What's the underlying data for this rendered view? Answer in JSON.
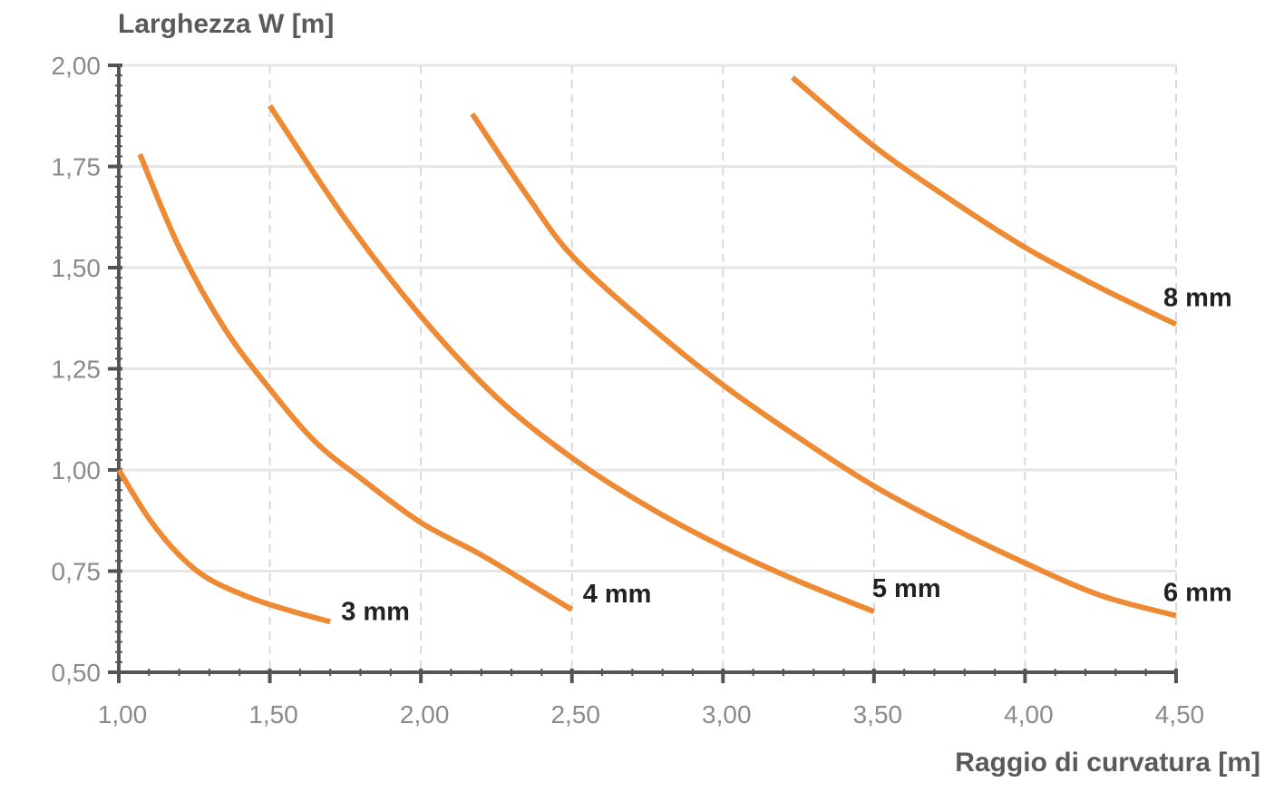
{
  "chart_data": {
    "type": "line",
    "title": "",
    "ylabel": "Larghezza W [m]",
    "xlabel": "Raggio di curvatura [m]",
    "xlim": [
      1.0,
      4.5
    ],
    "ylim": [
      0.5,
      2.0
    ],
    "x_ticks": [
      "1,00",
      "1,50",
      "2,00",
      "2,50",
      "3,00",
      "3,50",
      "4,00",
      "4,50"
    ],
    "y_ticks": [
      "0,50",
      "0,75",
      "1,00",
      "1,25",
      "1,50",
      "1,75",
      "2,00"
    ],
    "x_tick_values": [
      1.0,
      1.5,
      2.0,
      2.5,
      3.0,
      3.5,
      4.0,
      4.5
    ],
    "y_tick_values": [
      0.5,
      0.75,
      1.0,
      1.25,
      1.5,
      1.75,
      2.0
    ],
    "grid": true,
    "line_color": "#ED8A33",
    "series": [
      {
        "name": "3 mm",
        "points": [
          [
            1.0,
            1.0
          ],
          [
            1.1,
            0.88
          ],
          [
            1.2,
            0.79
          ],
          [
            1.3,
            0.73
          ],
          [
            1.45,
            0.68
          ],
          [
            1.6,
            0.645
          ],
          [
            1.7,
            0.625
          ]
        ]
      },
      {
        "name": "4 mm",
        "points": [
          [
            1.07,
            1.78
          ],
          [
            1.2,
            1.55
          ],
          [
            1.35,
            1.35
          ],
          [
            1.5,
            1.2
          ],
          [
            1.65,
            1.07
          ],
          [
            1.8,
            0.98
          ],
          [
            2.0,
            0.87
          ],
          [
            2.2,
            0.79
          ],
          [
            2.4,
            0.7
          ],
          [
            2.5,
            0.655
          ]
        ]
      },
      {
        "name": "5 mm",
        "points": [
          [
            1.5,
            1.9
          ],
          [
            1.75,
            1.62
          ],
          [
            2.0,
            1.38
          ],
          [
            2.25,
            1.18
          ],
          [
            2.5,
            1.03
          ],
          [
            2.75,
            0.91
          ],
          [
            3.0,
            0.81
          ],
          [
            3.25,
            0.725
          ],
          [
            3.5,
            0.65
          ]
        ]
      },
      {
        "name": "6 mm",
        "points": [
          [
            2.17,
            1.88
          ],
          [
            2.35,
            1.68
          ],
          [
            2.5,
            1.53
          ],
          [
            2.75,
            1.36
          ],
          [
            3.0,
            1.21
          ],
          [
            3.25,
            1.08
          ],
          [
            3.5,
            0.96
          ],
          [
            3.75,
            0.86
          ],
          [
            4.0,
            0.77
          ],
          [
            4.25,
            0.69
          ],
          [
            4.5,
            0.64
          ]
        ]
      },
      {
        "name": "8 mm",
        "points": [
          [
            3.23,
            1.97
          ],
          [
            3.5,
            1.8
          ],
          [
            3.75,
            1.67
          ],
          [
            4.0,
            1.55
          ],
          [
            4.25,
            1.45
          ],
          [
            4.5,
            1.36
          ]
        ]
      }
    ]
  }
}
